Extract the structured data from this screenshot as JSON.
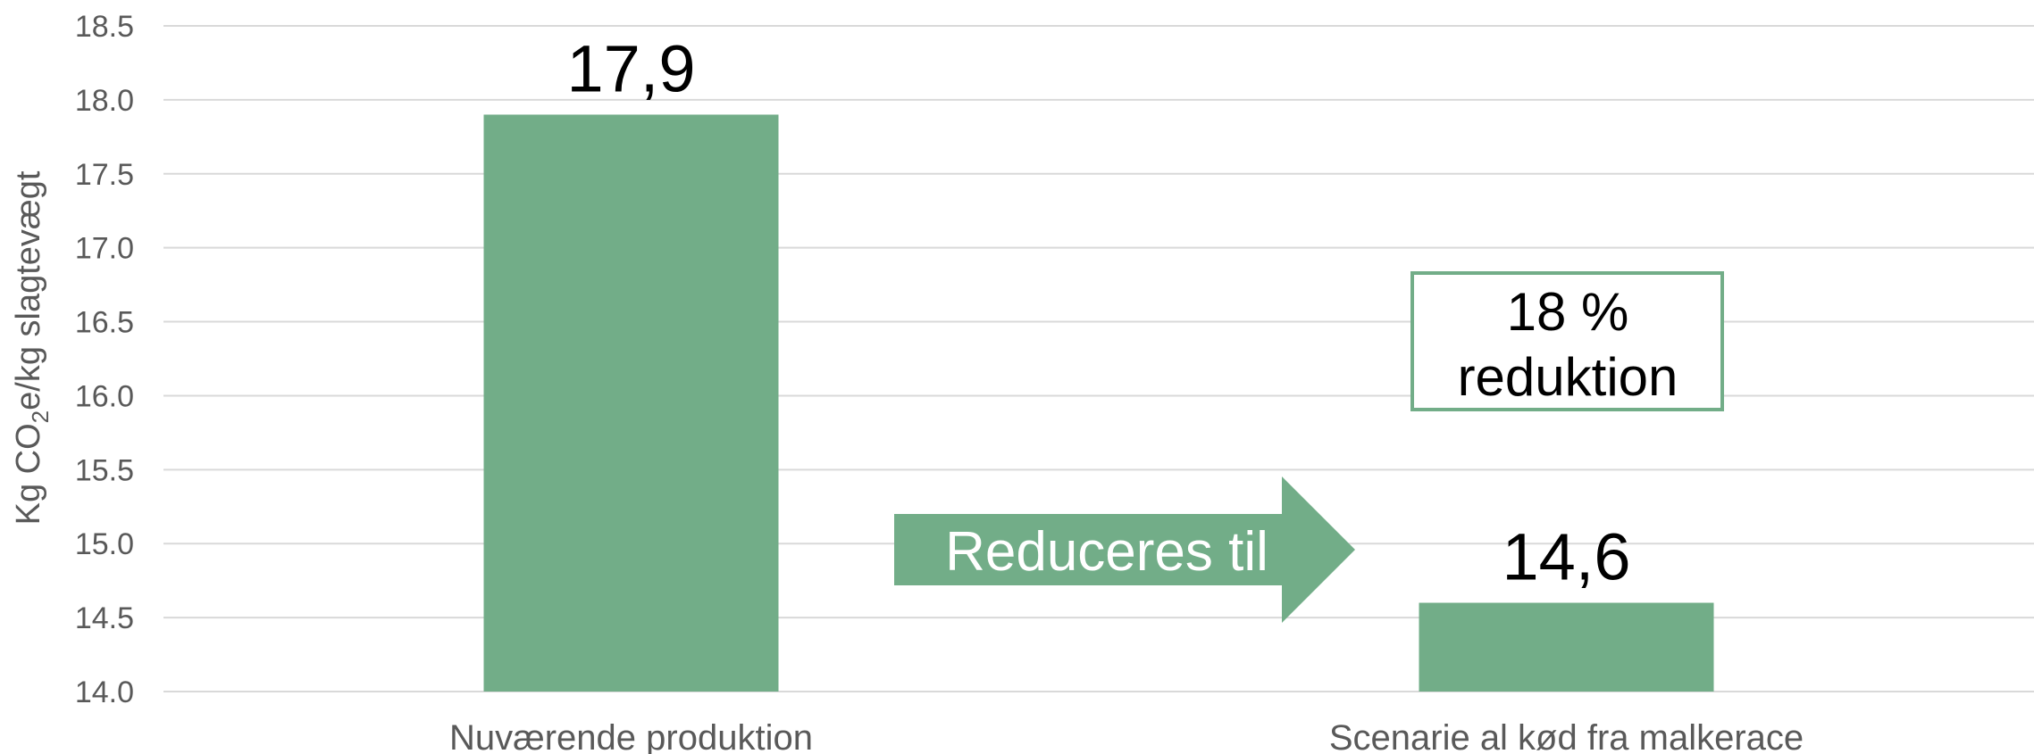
{
  "chart_data": {
    "type": "bar",
    "categories": [
      "Nuværende produktion",
      "Scenarie al kød fra malkerace"
    ],
    "values": [
      17.9,
      14.6
    ],
    "data_labels": [
      "17,9",
      "14,6"
    ],
    "ylabel": {
      "pre": "Kg CO",
      "sub": "2",
      "post": "e/kg slagtevægt"
    },
    "ylim": [
      14.0,
      18.5
    ],
    "yticks": [
      "14.0",
      "14.5",
      "15.0",
      "15.5",
      "16.0",
      "16.5",
      "17.0",
      "17.5",
      "18.0",
      "18.5"
    ],
    "grid": true,
    "bar_color": "#72AD88",
    "annotations": {
      "arrow_text": "Reduceres til",
      "box_line1": "18 %",
      "box_line2": "reduktion"
    }
  }
}
